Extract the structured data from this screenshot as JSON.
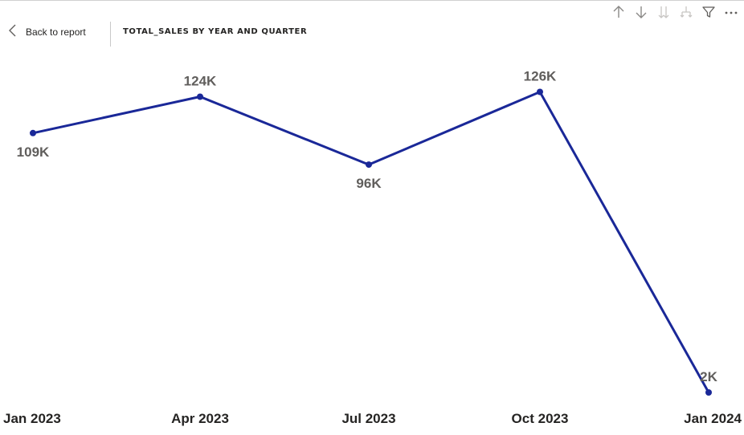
{
  "header": {
    "back_label": "Back to report",
    "visual_title": "TOTAL_SALES BY YEAR AND QUARTER"
  },
  "toolbar": {
    "icons": [
      "arrow-up-icon",
      "arrow-down-icon",
      "double-arrow-down-icon",
      "expand-hierarchy-icon",
      "filter-icon",
      "more-options-icon"
    ]
  },
  "colors": {
    "line": "#1a2898",
    "data_label": "#605e5c",
    "tick_label": "#252423",
    "icon": "#8a8886"
  },
  "chart_data": {
    "type": "line",
    "categories": [
      "Jan 2023",
      "Apr 2023",
      "Jul 2023",
      "Oct 2023",
      "Jan 2024"
    ],
    "series": [
      {
        "values": [
          109,
          124,
          96,
          126,
          2
        ],
        "data_labels": [
          "109K",
          "124K",
          "96K",
          "126K",
          "2K"
        ]
      }
    ],
    "title": "TOTAL_SALES BY YEAR AND QUARTER",
    "xlabel": "",
    "ylabel": "",
    "value_unit": "K",
    "grid": false,
    "legend": "none"
  }
}
